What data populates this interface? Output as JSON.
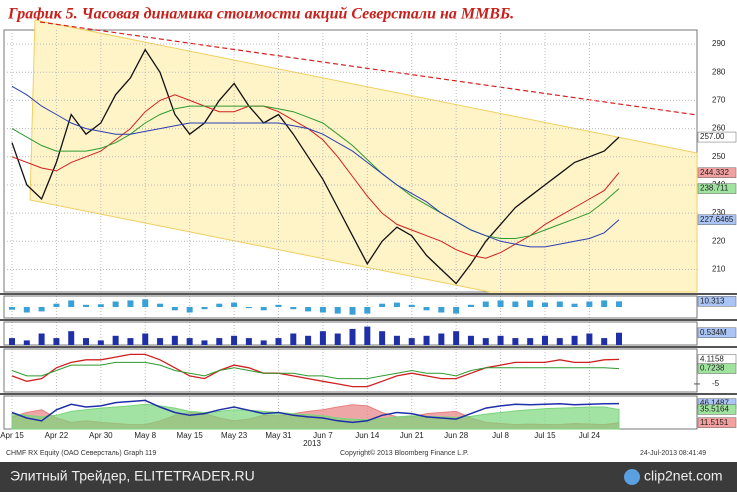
{
  "header": {
    "title": "График 5.   Часовая динамика стоимости акций Северстали на ММВБ."
  },
  "footer": {
    "left": "CHMF RX Equity (ОАО Северсталь) Graph 119",
    "center": "Copyright© 2013 Bloomberg Finance L.P.",
    "right": "24-Jul-2013 08:41:49"
  },
  "watermark": {
    "left": "Элитный Трейдер, ELITETRADER.RU",
    "right": "clip2net.com"
  },
  "chart_data": [
    {
      "type": "line",
      "grid": true,
      "x_note": "2013",
      "categories": [
        "Apr 15",
        null,
        null,
        "Apr 22",
        null,
        null,
        "Apr 30",
        null,
        null,
        "May 8",
        null,
        null,
        "May 15",
        null,
        null,
        "May 23",
        null,
        null,
        "May 31",
        null,
        null,
        "Jun 7",
        null,
        null,
        "Jun 14",
        null,
        null,
        "Jun 21",
        null,
        null,
        "Jun 28",
        null,
        null,
        "Jul 8",
        null,
        null,
        "Jul 15",
        null,
        null,
        "Jul 24",
        null,
        null
      ],
      "ylim": [
        202,
        295
      ],
      "yticks": [
        210,
        220,
        230,
        240,
        250,
        260,
        270,
        280,
        290
      ],
      "series": [
        {
          "name": "Price",
          "color": "#111111",
          "values": [
            255,
            240,
            235,
            248,
            265,
            258,
            262,
            272,
            278,
            288,
            280,
            265,
            258,
            262,
            270,
            276,
            268,
            262,
            265,
            258,
            250,
            242,
            232,
            222,
            212,
            220,
            225,
            222,
            215,
            210,
            205,
            212,
            220,
            226,
            232,
            236,
            240,
            244,
            248,
            250,
            252,
            257
          ]
        },
        {
          "name": "MA1",
          "color": "#d02020",
          "values": [
            250,
            248,
            246,
            245,
            248,
            250,
            252,
            256,
            260,
            266,
            270,
            272,
            270,
            268,
            266,
            266,
            268,
            268,
            266,
            263,
            260,
            256,
            250,
            243,
            236,
            230,
            226,
            224,
            222,
            220,
            217,
            215,
            214,
            216,
            219,
            222,
            226,
            229,
            232,
            235,
            238,
            244.332
          ]
        },
        {
          "name": "MA2",
          "color": "#2e9a2e",
          "values": [
            260,
            257,
            254,
            252,
            252,
            252,
            253,
            255,
            258,
            262,
            265,
            267,
            268,
            268,
            268,
            268,
            268,
            268,
            267,
            266,
            264,
            262,
            258,
            254,
            249,
            244,
            240,
            236,
            233,
            230,
            227,
            224,
            222,
            221,
            221,
            222,
            224,
            226,
            228,
            230,
            234,
            238.711
          ]
        },
        {
          "name": "MA3",
          "color": "#2b3fb0",
          "values": [
            275,
            272,
            268,
            265,
            262,
            260,
            259,
            258,
            258,
            259,
            260,
            261,
            262,
            262,
            262,
            262,
            262,
            262,
            262,
            261,
            260,
            258,
            255,
            252,
            248,
            244,
            240,
            237,
            234,
            230,
            227,
            224,
            222,
            220,
            219,
            218,
            218,
            219,
            220,
            221,
            223,
            227.6465
          ]
        }
      ],
      "last_labels": [
        {
          "value": 257,
          "label": "257.00",
          "color": "#ffffff"
        },
        {
          "value": 244.332,
          "label": "244.332",
          "color": "#f3a0a0"
        },
        {
          "value": 238.711,
          "label": "238.711",
          "color": "#9fe39f"
        },
        {
          "value": 227.6465,
          "label": "227.6465",
          "color": "#a9c4f5"
        }
      ]
    },
    {
      "type": "bar",
      "ylim": [
        -20,
        20
      ],
      "series": [
        {
          "name": "Oscillator",
          "color": "#3aa0d8",
          "values": [
            -5,
            -10,
            -8,
            6,
            12,
            4,
            5,
            10,
            12,
            14,
            6,
            -6,
            -10,
            -4,
            6,
            8,
            -2,
            -6,
            4,
            -4,
            -8,
            -10,
            -12,
            -14,
            -12,
            6,
            8,
            4,
            -6,
            -10,
            -12,
            4,
            10,
            12,
            10,
            12,
            8,
            10,
            6,
            10,
            12,
            10.313
          ]
        }
      ],
      "last_labels": [
        {
          "value": 10.313,
          "label": "10.313",
          "color": "#a9c4f5"
        }
      ]
    },
    {
      "type": "bar",
      "ylim": [
        0,
        1
      ],
      "series": [
        {
          "name": "Volume",
          "color": "#1f2fa8",
          "values": [
            0.3,
            0.2,
            0.5,
            0.3,
            0.6,
            0.3,
            0.2,
            0.4,
            0.3,
            0.5,
            0.3,
            0.4,
            0.3,
            0.2,
            0.3,
            0.4,
            0.3,
            0.2,
            0.3,
            0.5,
            0.4,
            0.6,
            0.5,
            0.7,
            0.8,
            0.6,
            0.4,
            0.3,
            0.4,
            0.5,
            0.6,
            0.4,
            0.3,
            0.4,
            0.3,
            0.3,
            0.4,
            0.3,
            0.4,
            0.5,
            0.3,
            0.534
          ]
        }
      ],
      "last_labels": [
        {
          "value": 0.534,
          "label": "0.534M",
          "color": "#a9c4f5"
        }
      ]
    },
    {
      "type": "line",
      "ylim": [
        -8,
        8
      ],
      "yticks": [
        -5
      ],
      "series": [
        {
          "name": "Fast",
          "color": "#d02020",
          "values": [
            -2,
            -4,
            -3,
            1,
            3,
            4,
            4,
            5,
            6,
            6,
            4,
            1,
            -2,
            -3,
            0,
            2,
            1,
            -1,
            -1,
            -2,
            -3,
            -4,
            -5,
            -6,
            -6,
            -4,
            -2,
            -1,
            -2,
            -3,
            -3,
            -1,
            1,
            2,
            3,
            3,
            3,
            4,
            3,
            3,
            4,
            4.1158
          ]
        },
        {
          "name": "Slow",
          "color": "#2e9a2e",
          "values": [
            0,
            -2,
            -2,
            0,
            2,
            2,
            2,
            3,
            3,
            3,
            2,
            0,
            -1,
            -2,
            0,
            1,
            0,
            -1,
            -1,
            -1,
            -2,
            -2,
            -3,
            -3,
            -3,
            -2,
            -1,
            0,
            -1,
            -1,
            -2,
            0,
            1,
            1,
            1,
            1,
            1,
            1,
            1,
            1,
            1,
            0.7238
          ]
        }
      ],
      "last_labels": [
        {
          "value": 4.1158,
          "label": "4.1158",
          "color": "#ffffff"
        },
        {
          "value": 0.7238,
          "label": "0.7238",
          "color": "#9fe39f"
        }
      ]
    },
    {
      "type": "area",
      "ylim": [
        0,
        60
      ],
      "series": [
        {
          "name": "DMI-",
          "color": "#e88080",
          "style": "area",
          "values": [
            22,
            30,
            35,
            20,
            12,
            15,
            12,
            10,
            8,
            8,
            15,
            25,
            30,
            28,
            20,
            15,
            18,
            25,
            24,
            28,
            32,
            35,
            40,
            44,
            42,
            30,
            22,
            22,
            28,
            30,
            32,
            20,
            12,
            10,
            8,
            9,
            8,
            8,
            10,
            9,
            8,
            11.5151
          ]
        },
        {
          "name": "DMI+",
          "color": "#7bd67b",
          "style": "area",
          "values": [
            28,
            25,
            22,
            25,
            32,
            35,
            38,
            40,
            42,
            45,
            42,
            38,
            32,
            30,
            32,
            35,
            34,
            32,
            30,
            28,
            26,
            24,
            20,
            18,
            17,
            19,
            22,
            24,
            23,
            22,
            21,
            23,
            27,
            30,
            33,
            35,
            37,
            38,
            39,
            40,
            40,
            35.5164
          ]
        },
        {
          "name": "ADX",
          "color": "#1f2fa8",
          "style": "line",
          "values": [
            30,
            20,
            15,
            35,
            45,
            40,
            42,
            48,
            50,
            52,
            40,
            30,
            25,
            28,
            35,
            40,
            34,
            28,
            30,
            25,
            22,
            20,
            15,
            12,
            15,
            25,
            30,
            28,
            22,
            20,
            18,
            28,
            38,
            42,
            45,
            44,
            45,
            46,
            44,
            45,
            46,
            46.1487
          ]
        }
      ],
      "last_labels": [
        {
          "value": 46.1487,
          "label": "46.1487",
          "color": "#a9c4f5"
        },
        {
          "value": 35.5164,
          "label": "35.5164",
          "color": "#9fe39f"
        },
        {
          "value": 11.5151,
          "label": "11.5151",
          "color": "#f3a0a0"
        }
      ]
    }
  ]
}
